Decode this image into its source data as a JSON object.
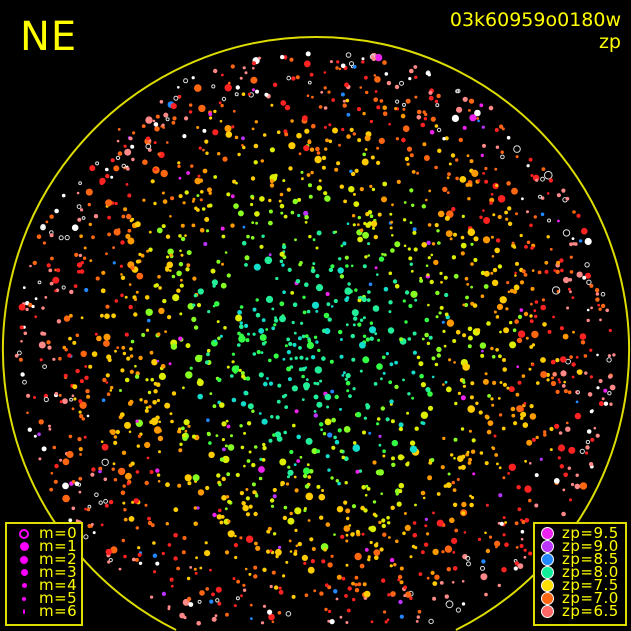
{
  "title": "NE",
  "image_id": "03k60959o0180w",
  "quantity": "zp",
  "colors": {
    "horizon": "#dddd00",
    "text": "#ffff00",
    "legend_marker": "#ff00ff"
  },
  "magnitude_legend": [
    {
      "label": "m=0",
      "marker": "ring"
    },
    {
      "label": "m=1",
      "marker": "dot"
    },
    {
      "label": "m=2",
      "marker": "dot"
    },
    {
      "label": "m=3",
      "marker": "dot"
    },
    {
      "label": "m=4",
      "marker": "dot"
    },
    {
      "label": "m=5",
      "marker": "dot"
    },
    {
      "label": "m=6",
      "marker": "dot"
    }
  ],
  "zp_legend": [
    {
      "label": "zp=9.5",
      "color": "#ee22ee"
    },
    {
      "label": "zp=9.0",
      "color": "#bb33ff"
    },
    {
      "label": "zp=8.5",
      "color": "#2288ff"
    },
    {
      "label": "zp=8.0",
      "color": "#11ee99"
    },
    {
      "label": "zp=7.5",
      "color": "#ffdd00"
    },
    {
      "label": "zp=7.0",
      "color": "#ff6611"
    },
    {
      "label": "zp=6.5",
      "color": "#ff6666"
    }
  ]
}
